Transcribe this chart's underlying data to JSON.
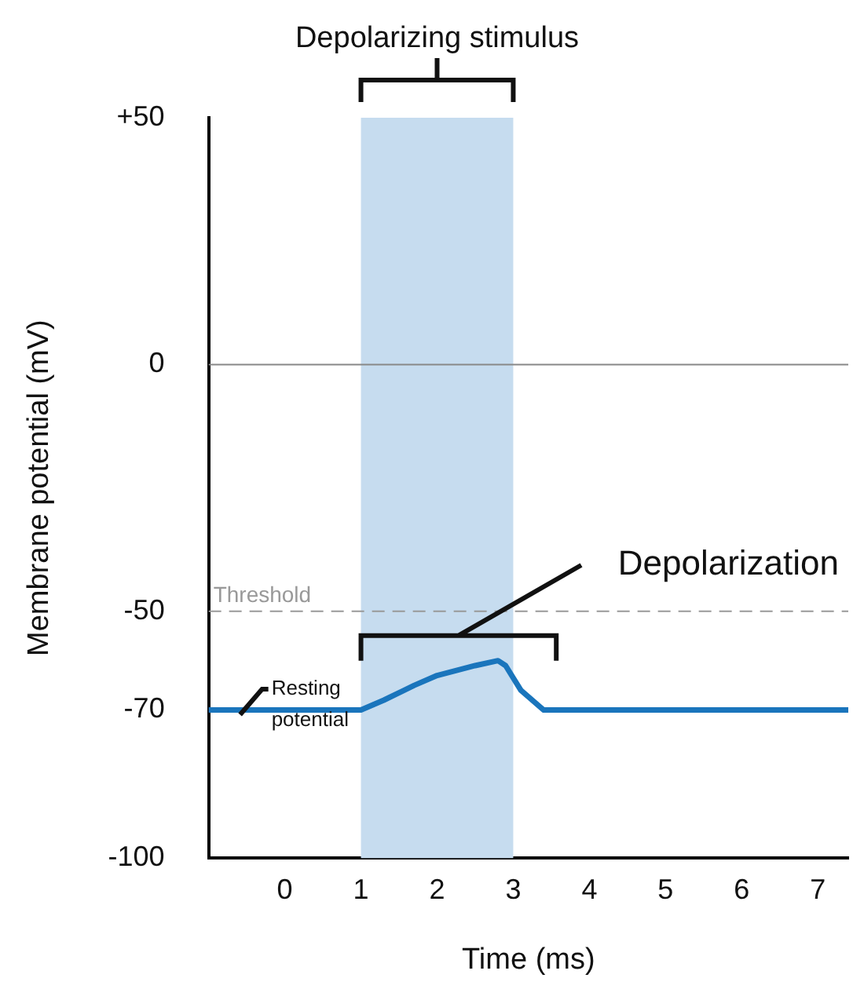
{
  "chart_data": {
    "type": "line",
    "xlabel": "Time (ms)",
    "ylabel": "Membrane potential (mV)",
    "xlim": [
      -1,
      7.4
    ],
    "xticks": [
      0,
      1,
      2,
      3,
      4,
      5,
      6,
      7
    ],
    "ylim": [
      -100,
      50
    ],
    "yticks": [
      -100,
      -70,
      -50,
      0,
      {
        "value": 50,
        "label": "+50"
      }
    ],
    "grid": false,
    "legend": false,
    "marker": "none",
    "line_style": "solid",
    "series": [
      {
        "color": "#1a75bc",
        "x": [
          -1,
          1,
          1.3,
          1.7,
          2,
          2.5,
          2.8,
          2.9,
          3.1,
          3.4,
          7.4
        ],
        "values": [
          -70,
          -70,
          -68,
          -65,
          -63,
          -61,
          -60,
          -61,
          -66,
          -70,
          -70
        ]
      }
    ],
    "bands": [
      {
        "axis": "x",
        "from": 1,
        "to": 3,
        "label": "Depolarizing stimulus",
        "color": "#c6dcef"
      }
    ],
    "ref_lines": [
      {
        "axis": "y",
        "value": 0,
        "color": "#888888",
        "line_style": "solid"
      },
      {
        "axis": "y",
        "value": -50,
        "label": "Threshold",
        "color": "#999999",
        "line_style": "dashed"
      }
    ],
    "annotations": [
      "Depolarization",
      "Resting potential"
    ]
  }
}
